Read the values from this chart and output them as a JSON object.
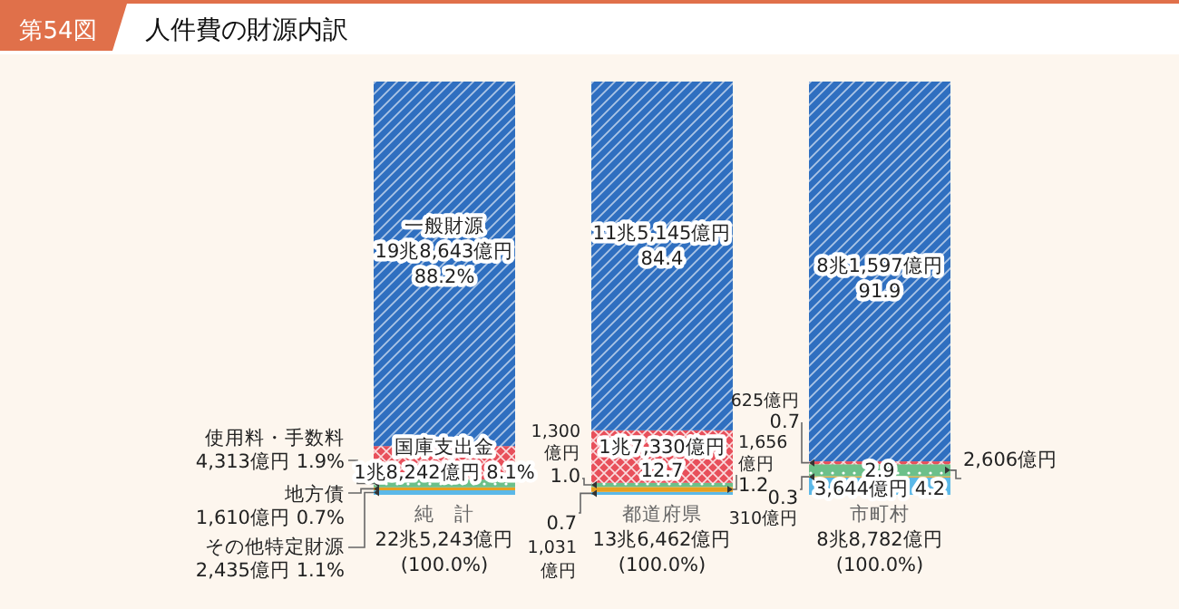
{
  "chart_data": {
    "type": "bar",
    "stacked": true,
    "title": "人件費の財源内訳",
    "annotations": [
      "第54図",
      "310億円"
    ],
    "legend": false,
    "categories": [
      "純　計",
      "都道府県",
      "市町村"
    ],
    "totals": [
      "22兆5,243億円\n(100.0%)",
      "13兆6,462億円\n(100.0%)",
      "8兆8,782億円\n(100.0%)"
    ],
    "series": [
      {
        "name": "その他特定財源",
        "color": "#5bb8e8",
        "values": [
          1.1,
          0.7,
          4.2
        ],
        "value_labels": [
          "2,435億円 1.1%",
          "0.7\n1,031\n億円",
          "3,644億円 4.2"
        ]
      },
      {
        "name": "地方債",
        "color": "#e8a020",
        "values": [
          0.7,
          1.2,
          0.3
        ],
        "value_labels": [
          "1,610億円 0.7%",
          "1,656\n億円\n1.2",
          "0.3"
        ]
      },
      {
        "name": "使用料・手数料",
        "color": "#6cc08a",
        "values": [
          1.9,
          1.0,
          2.9
        ],
        "value_labels": [
          "4,313億円 1.9%",
          "1,300\n億円\n1.0",
          "2,606億円\n2.9"
        ]
      },
      {
        "name": "国庫支出金",
        "color": "#e8505b",
        "values": [
          8.1,
          12.7,
          0.7
        ],
        "value_labels": [
          "1兆8,242億円 8.1%",
          "1兆7,330億円\n12.7",
          "625億円\n0.7"
        ]
      },
      {
        "name": "一般財源",
        "color": "#2f6fc0",
        "values": [
          88.2,
          84.4,
          91.9
        ],
        "value_labels": [
          "19兆8,643億円\n88.2%",
          "11兆5,145億円\n84.4",
          "8兆1,597億円\n91.9"
        ]
      }
    ]
  }
}
